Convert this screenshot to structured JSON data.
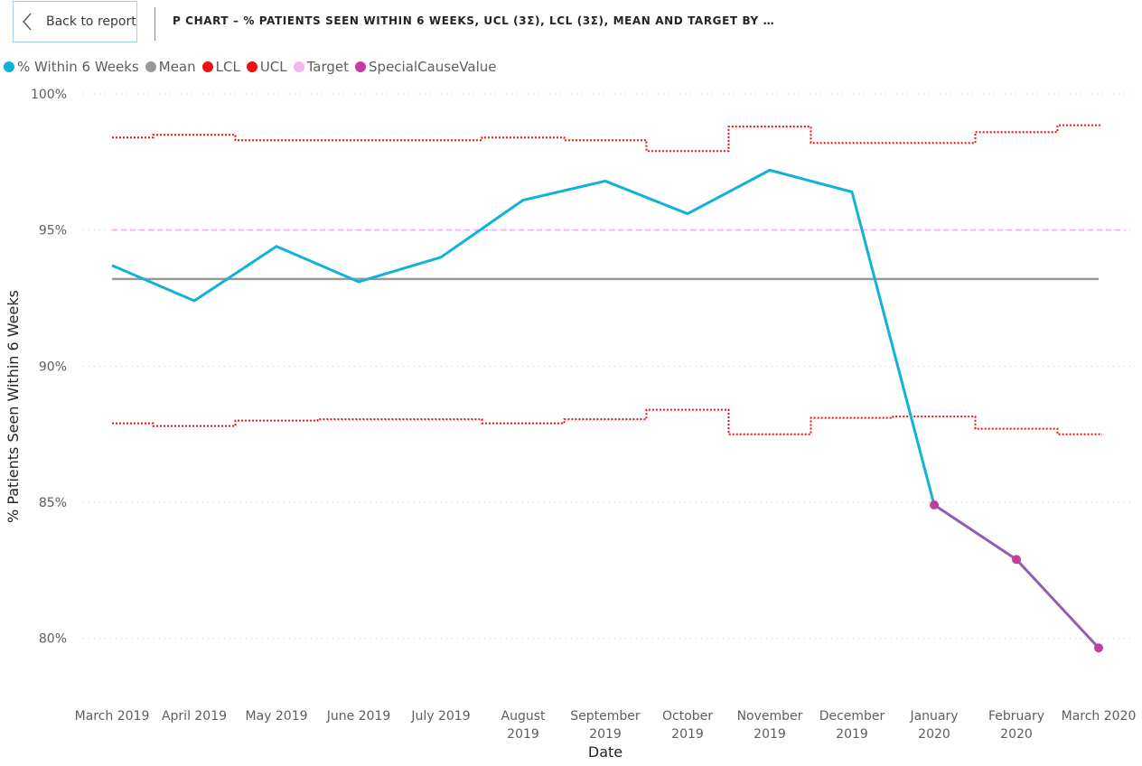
{
  "header": {
    "back_label": "Back to report",
    "title": "P CHART – % PATIENTS SEEN WITHIN 6 WEEKS, UCL (3Σ), LCL (3Σ), MEAN AND TARGET BY …"
  },
  "legend": [
    {
      "label": "% Within 6 Weeks",
      "color": "#11b2d6"
    },
    {
      "label": "Mean",
      "color": "#999999"
    },
    {
      "label": "LCL",
      "color": "#ee1111"
    },
    {
      "label": "UCL",
      "color": "#ee1111"
    },
    {
      "label": "Target",
      "color": "#f5b6ee"
    },
    {
      "label": "SpecialCauseValue",
      "color": "#c43d9c"
    }
  ],
  "chart_data": {
    "type": "line",
    "xlabel": "Date",
    "ylabel": "% Patients Seen Within 6 Weeks",
    "ylim": [
      78,
      100
    ],
    "y_ticks": [
      "80%",
      "85%",
      "90%",
      "95%",
      "100%"
    ],
    "y_tick_values": [
      80,
      85,
      90,
      95,
      100
    ],
    "categories": [
      [
        "March 2019"
      ],
      [
        "April 2019"
      ],
      [
        "May 2019"
      ],
      [
        "June 2019"
      ],
      [
        "July 2019"
      ],
      [
        "August",
        "2019"
      ],
      [
        "September",
        "2019"
      ],
      [
        "October",
        "2019"
      ],
      [
        "November",
        "2019"
      ],
      [
        "December",
        "2019"
      ],
      [
        "January",
        "2020"
      ],
      [
        "February",
        "2020"
      ],
      [
        "March 2020"
      ]
    ],
    "grid": "horizontal dotted",
    "legend_position": "top-left",
    "series": [
      {
        "name": "% Within 6 Weeks",
        "color": "#11b2d6",
        "style": "solid",
        "values": [
          93.7,
          92.4,
          94.4,
          93.1,
          94.0,
          96.1,
          96.8,
          95.6,
          97.2,
          96.4,
          84.9,
          null,
          null
        ]
      },
      {
        "name": "Mean",
        "color": "#999999",
        "style": "solid",
        "values": [
          93.2,
          93.2,
          93.2,
          93.2,
          93.2,
          93.2,
          93.2,
          93.2,
          93.2,
          93.2,
          93.2,
          93.2,
          93.2
        ]
      },
      {
        "name": "LCL",
        "color": "#ee1111",
        "style": "step-dotted",
        "values": [
          87.9,
          87.8,
          88.0,
          88.05,
          88.05,
          87.9,
          88.05,
          88.4,
          87.5,
          88.1,
          88.15,
          87.7,
          87.5
        ]
      },
      {
        "name": "UCL",
        "color": "#ee1111",
        "style": "step-dotted",
        "values": [
          98.4,
          98.5,
          98.3,
          98.3,
          98.3,
          98.4,
          98.3,
          97.9,
          98.8,
          98.2,
          98.2,
          98.6,
          98.85
        ]
      },
      {
        "name": "Target",
        "color": "#f5b6ee",
        "style": "dashed",
        "values": [
          95,
          95,
          95,
          95,
          95,
          95,
          95,
          95,
          95,
          95,
          95,
          95,
          95
        ]
      },
      {
        "name": "SpecialCauseValue",
        "color": "#8e5fb0",
        "marker_color": "#c43d9c",
        "style": "solid-markers",
        "values": [
          null,
          null,
          null,
          null,
          null,
          null,
          null,
          null,
          null,
          null,
          84.9,
          82.9,
          79.65
        ]
      }
    ]
  }
}
